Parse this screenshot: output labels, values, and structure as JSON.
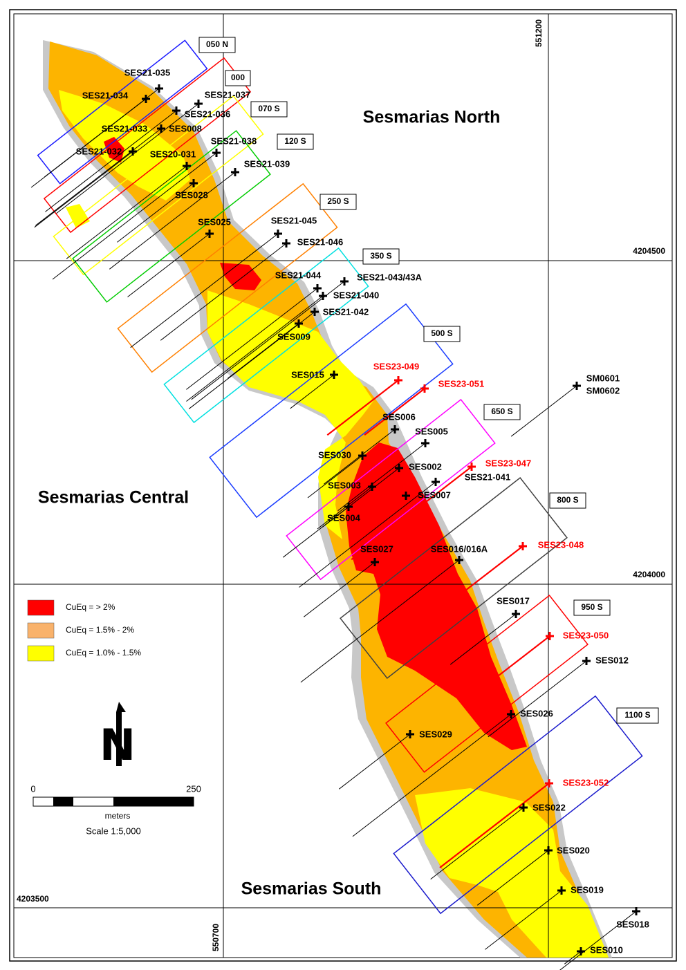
{
  "sections": [
    "050 N",
    "000",
    "070 S",
    "120 S",
    "250 S",
    "350 S",
    "500 S",
    "650 S",
    "800 S",
    "950 S",
    "1100 S"
  ],
  "grid_labels": {
    "easting": [
      "551200",
      "550700"
    ],
    "northing": [
      "4204500",
      "4204000",
      "4203500"
    ]
  },
  "areas": [
    "Sesmarias North",
    "Sesmarias Central",
    "Sesmarias South"
  ],
  "legend": [
    {
      "label": "CuEq = > 2%",
      "color": "#ff0000"
    },
    {
      "label": "CuEq = 1.5% - 2%",
      "color": "#f9b26b"
    },
    {
      "label": "CuEq = 1.0% - 1.5%",
      "color": "#ffff00"
    }
  ],
  "north_label": "N",
  "scale": {
    "ticks": [
      "0",
      "250"
    ],
    "unit": "meters",
    "text": "Scale 1:5,000"
  },
  "holes": [
    {
      "labels": [
        "SES21-035"
      ],
      "color": "black"
    },
    {
      "labels": [
        "SES21-034"
      ],
      "color": "black"
    },
    {
      "labels": [
        "SES21-037"
      ],
      "color": "black"
    },
    {
      "labels": [
        "SES21-036"
      ],
      "color": "black"
    },
    {
      "labels": [
        "SES21-033"
      ],
      "color": "black"
    },
    {
      "labels": [
        "SES008"
      ],
      "color": "black"
    },
    {
      "labels": [
        "SES21-032"
      ],
      "color": "black"
    },
    {
      "labels": [
        "SES20-031"
      ],
      "color": "black"
    },
    {
      "labels": [
        "SES21-038"
      ],
      "color": "black"
    },
    {
      "labels": [
        "SES21-039"
      ],
      "color": "black"
    },
    {
      "labels": [
        "SES028"
      ],
      "color": "black"
    },
    {
      "labels": [
        "SES025"
      ],
      "color": "black"
    },
    {
      "labels": [
        "SES21-045"
      ],
      "color": "black"
    },
    {
      "labels": [
        "SES21-046"
      ],
      "color": "black"
    },
    {
      "labels": [
        "SES21-044"
      ],
      "color": "black"
    },
    {
      "labels": [
        "SES21-043/43A"
      ],
      "color": "black"
    },
    {
      "labels": [
        "SES21-040"
      ],
      "color": "black"
    },
    {
      "labels": [
        "SES21-042"
      ],
      "color": "black"
    },
    {
      "labels": [
        "SES009"
      ],
      "color": "black"
    },
    {
      "labels": [
        "SES015"
      ],
      "color": "black"
    },
    {
      "labels": [
        "SES23-049"
      ],
      "color": "red"
    },
    {
      "labels": [
        "SES23-051"
      ],
      "color": "red"
    },
    {
      "labels": [
        "SM0601",
        "SM0602"
      ],
      "color": "black"
    },
    {
      "labels": [
        "SES006"
      ],
      "color": "black"
    },
    {
      "labels": [
        "SES005"
      ],
      "color": "black"
    },
    {
      "labels": [
        "SES030"
      ],
      "color": "black"
    },
    {
      "labels": [
        "SES23-047"
      ],
      "color": "red"
    },
    {
      "labels": [
        "SES002"
      ],
      "color": "black"
    },
    {
      "labels": [
        "SES21-041"
      ],
      "color": "black"
    },
    {
      "labels": [
        "SES003"
      ],
      "color": "black"
    },
    {
      "labels": [
        "SES007"
      ],
      "color": "black"
    },
    {
      "labels": [
        "SES004"
      ],
      "color": "black"
    },
    {
      "labels": [
        "SES027"
      ],
      "color": "black"
    },
    {
      "labels": [
        "SES016/016A"
      ],
      "color": "black"
    },
    {
      "labels": [
        "SES23-048"
      ],
      "color": "red"
    },
    {
      "labels": [
        "SES017"
      ],
      "color": "black"
    },
    {
      "labels": [
        "SES23-050"
      ],
      "color": "red"
    },
    {
      "labels": [
        "SES012"
      ],
      "color": "black"
    },
    {
      "labels": [
        "SES026"
      ],
      "color": "black"
    },
    {
      "labels": [
        "SES029"
      ],
      "color": "black"
    },
    {
      "labels": [
        "SES23-052"
      ],
      "color": "red"
    },
    {
      "labels": [
        "SES022"
      ],
      "color": "black"
    },
    {
      "labels": [
        "SES020"
      ],
      "color": "black"
    },
    {
      "labels": [
        "SES019"
      ],
      "color": "black"
    },
    {
      "labels": [
        "SES018"
      ],
      "color": "black"
    },
    {
      "labels": [
        "SES010"
      ],
      "color": "black"
    }
  ]
}
